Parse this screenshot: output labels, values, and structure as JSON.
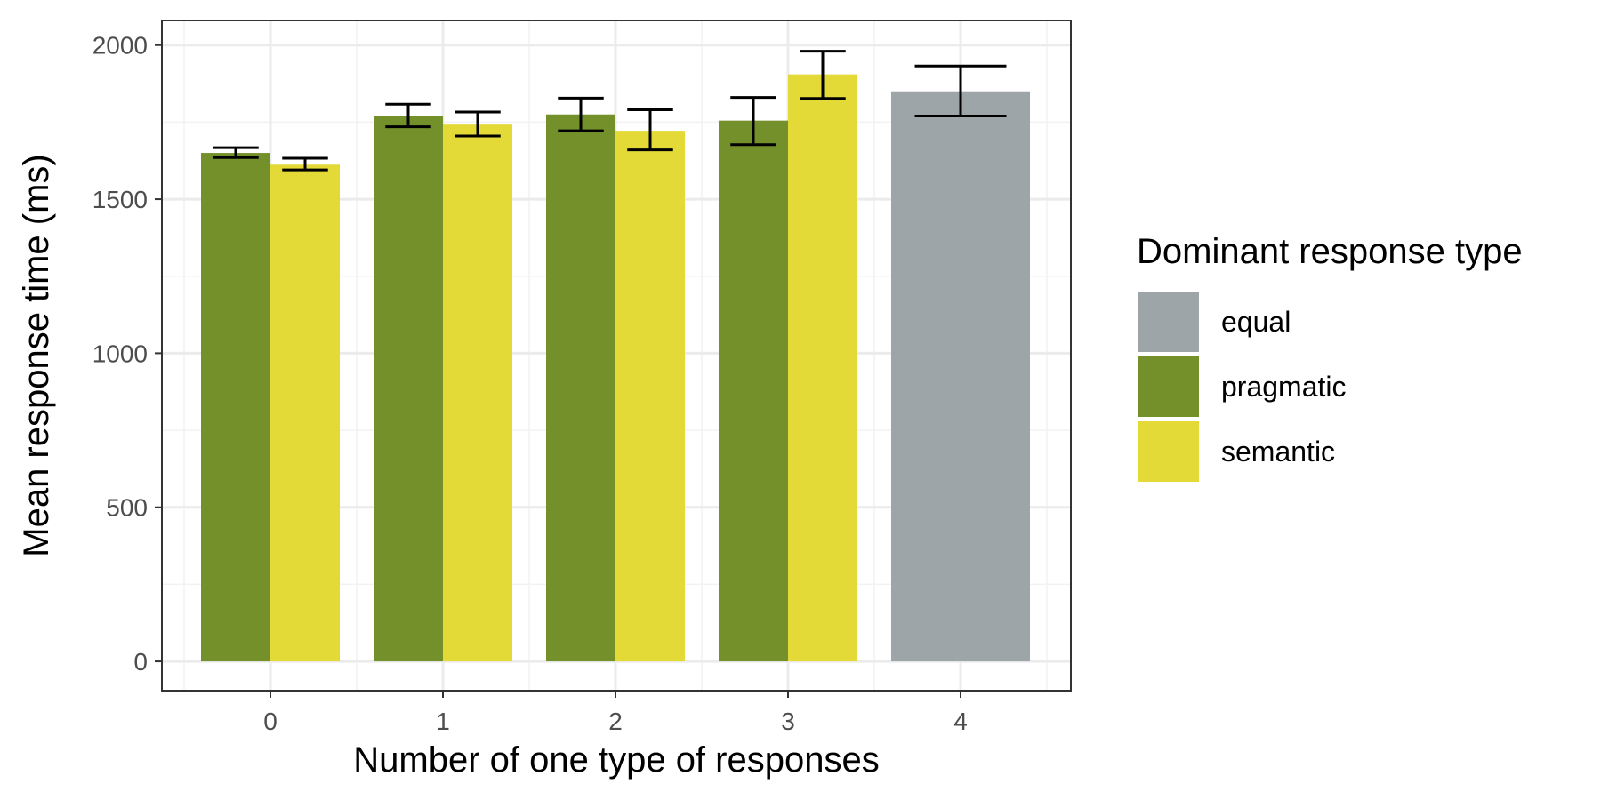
{
  "chart_data": {
    "type": "bar",
    "xlabel": "Number of one type of responses",
    "ylabel": "Mean response time (ms)",
    "ylim": [
      -95,
      2080
    ],
    "yticks": [
      0,
      500,
      1000,
      1500,
      2000
    ],
    "categories": [
      "0",
      "1",
      "2",
      "3",
      "4"
    ],
    "grid": true,
    "legend": {
      "title": "Dominant response type",
      "position": "right",
      "entries": [
        {
          "name": "equal",
          "color": "#9da5a8"
        },
        {
          "name": "pragmatic",
          "color": "#73902b"
        },
        {
          "name": "semantic",
          "color": "#e3da38"
        }
      ]
    },
    "series": [
      {
        "name": "pragmatic",
        "color": "#73902b",
        "values": [
          1650,
          1770,
          1775,
          1755,
          null
        ],
        "error_low": [
          1635,
          1735,
          1722,
          1677,
          null
        ],
        "error_high": [
          1667,
          1808,
          1828,
          1830,
          null
        ]
      },
      {
        "name": "semantic",
        "color": "#e3da38",
        "values": [
          1612,
          1742,
          1722,
          1905,
          null
        ],
        "error_low": [
          1595,
          1705,
          1660,
          1827,
          null
        ],
        "error_high": [
          1633,
          1783,
          1790,
          1980,
          null
        ]
      },
      {
        "name": "equal",
        "color": "#9da5a8",
        "values": [
          null,
          null,
          null,
          null,
          1850
        ],
        "error_low": [
          null,
          null,
          null,
          null,
          1770
        ],
        "error_high": [
          null,
          null,
          null,
          null,
          1932
        ]
      }
    ]
  }
}
